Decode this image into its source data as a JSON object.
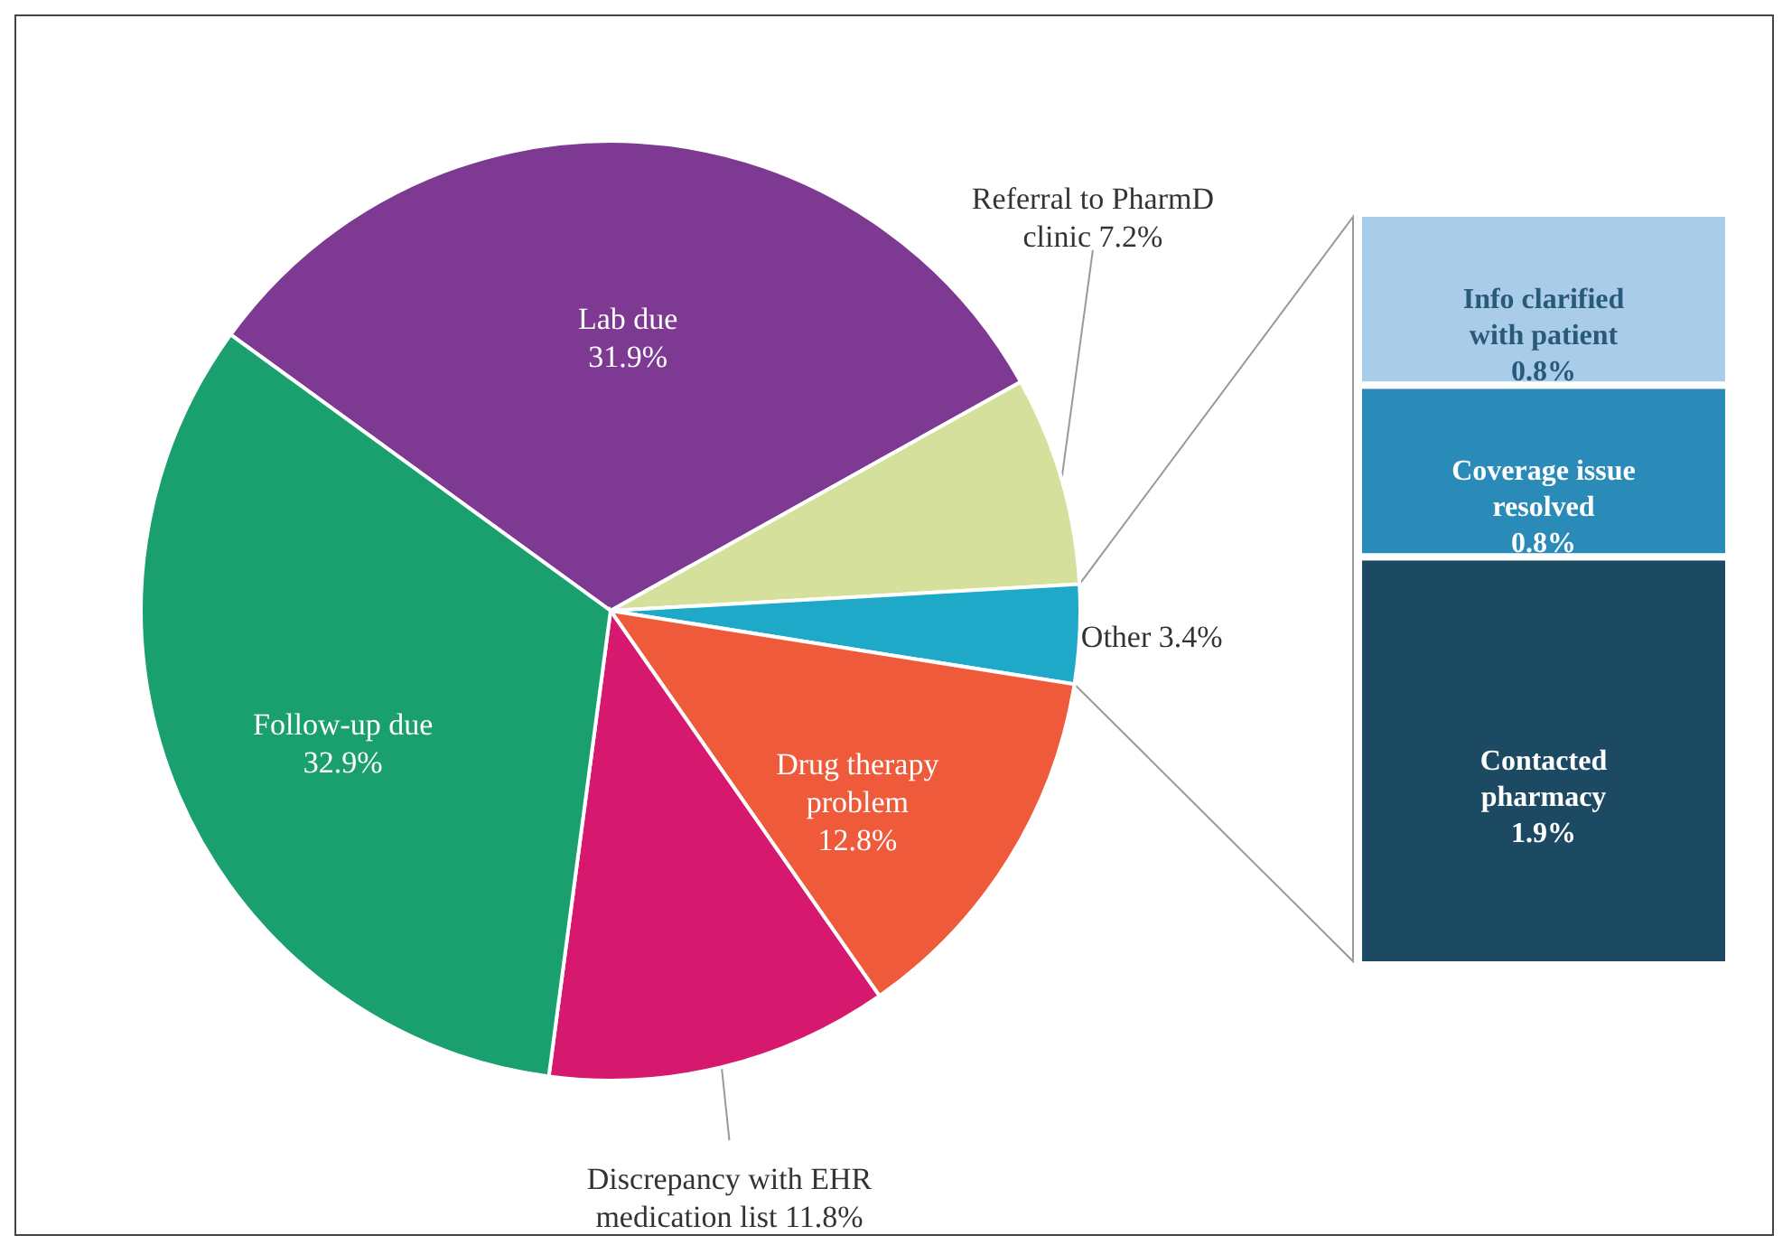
{
  "chart_data": [
    {
      "type": "pie",
      "categories": [
        "Lab due",
        "Referral to PharmD clinic",
        "Other",
        "Drug therapy problem",
        "Discrepancy with EHR medication list",
        "Follow-up due"
      ],
      "values": [
        31.9,
        7.2,
        3.4,
        12.8,
        11.8,
        32.9
      ],
      "value_labels": [
        "31.9%",
        "7.2%",
        "3.4%",
        "12.8%",
        "11.8%",
        "32.9%"
      ],
      "colors": [
        "#7e3a92",
        "#d4e09b",
        "#1fa9c9",
        "#ef5a3a",
        "#d6196e",
        "#1aa06e"
      ]
    },
    {
      "type": "bar",
      "stacked": true,
      "categories": [
        null
      ],
      "series": [
        {
          "name": "Contacted pharmacy",
          "color": "#1d4a63",
          "values": [
            1.9
          ],
          "value_labels": [
            "1.9%"
          ]
        },
        {
          "name": "Coverage issue resolved",
          "color": "#2a8ab8",
          "values": [
            0.8
          ],
          "value_labels": [
            "0.8%"
          ]
        },
        {
          "name": "Info clarified with patient",
          "color": "#a9cce8",
          "values": [
            0.8
          ],
          "value_labels": [
            "0.8%"
          ]
        }
      ]
    }
  ]
}
